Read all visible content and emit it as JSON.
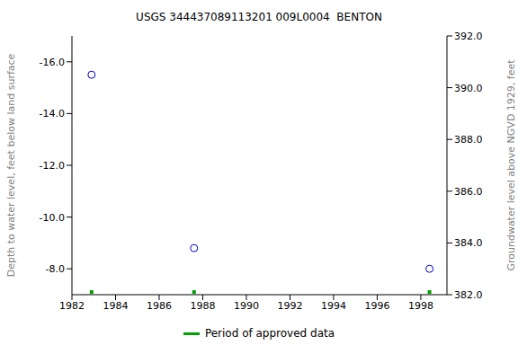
{
  "chart_data": {
    "type": "scatter",
    "title": "USGS 344437089113201 009L0004  BENTON",
    "x": [
      1982.9,
      1987.6,
      1998.4
    ],
    "values": [
      -15.5,
      -8.8,
      -8.0
    ],
    "color": "#0000cc",
    "marker": "circle",
    "xlim": [
      1982,
      1999.2
    ],
    "xticks": [
      1982,
      1984,
      1986,
      1988,
      1990,
      1992,
      1994,
      1996,
      1998
    ],
    "ylim": [
      -17,
      -7
    ],
    "yticks": [
      {
        "value": -16,
        "label": "-16.0"
      },
      {
        "value": -14,
        "label": "-14.0"
      },
      {
        "value": -12,
        "label": "-12.0"
      },
      {
        "value": -10,
        "label": "-10.0"
      },
      {
        "value": -8,
        "label": "-8.0"
      }
    ],
    "y_label": "Depth to water level, feet below land surface",
    "y2lim": [
      382,
      392
    ],
    "y2ticks": [
      {
        "value": 382,
        "label": "382.0"
      },
      {
        "value": 384,
        "label": "384.0"
      },
      {
        "value": 386,
        "label": "386.0"
      },
      {
        "value": 388,
        "label": "388.0"
      },
      {
        "value": 390,
        "label": "390.0"
      },
      {
        "value": 392,
        "label": "392.0"
      }
    ],
    "y2_label": "Groundwater level above NGVD 1929, feet",
    "approved": {
      "name": "Period of approved data",
      "color": "#00a000",
      "x": [
        1982.9,
        1987.6,
        1998.4
      ]
    },
    "grid": false
  }
}
